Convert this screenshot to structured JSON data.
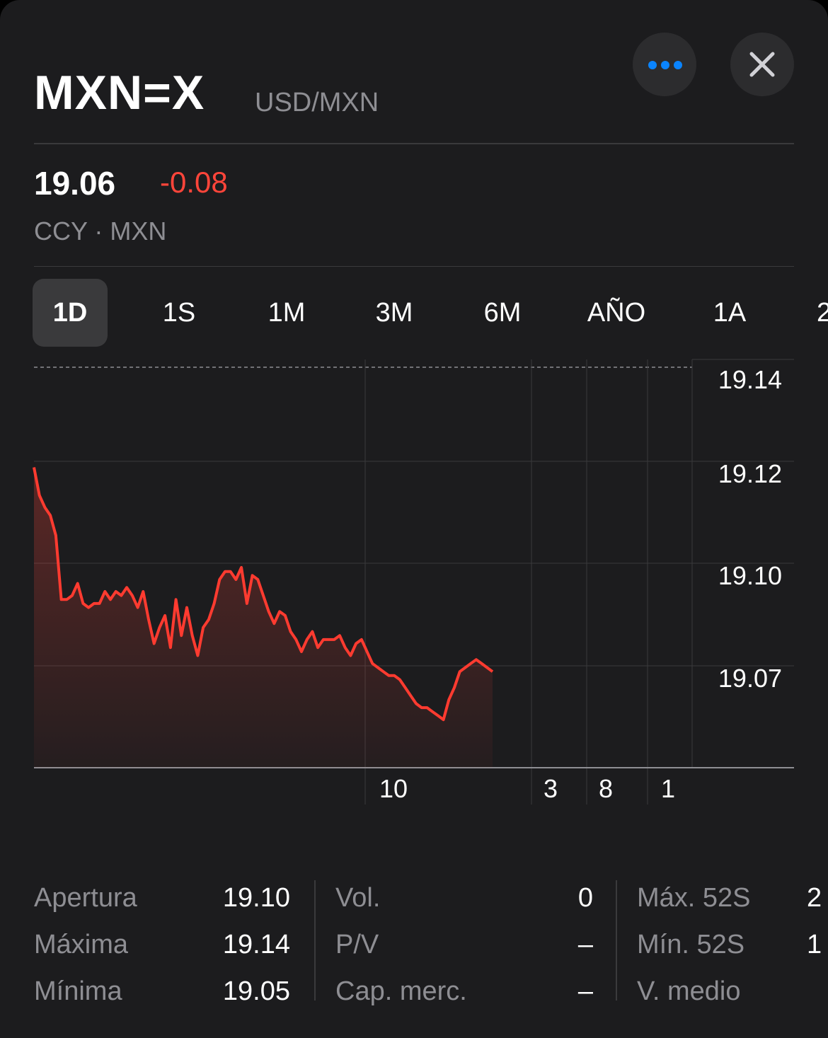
{
  "header": {
    "symbol": "MXN=X",
    "pair": "USD/MXN",
    "more_icon": "ellipsis-icon",
    "close_icon": "close-icon"
  },
  "quote": {
    "price": "19.06",
    "change": "-0.08",
    "meta": "CCY · MXN"
  },
  "tabs": [
    {
      "label": "1D",
      "active": true
    },
    {
      "label": "1S",
      "active": false
    },
    {
      "label": "1M",
      "active": false
    },
    {
      "label": "3M",
      "active": false
    },
    {
      "label": "6M",
      "active": false
    },
    {
      "label": "AÑO",
      "active": false
    },
    {
      "label": "1A",
      "active": false
    },
    {
      "label": "2",
      "active": false
    }
  ],
  "colors": {
    "background": "#1c1c1e",
    "negative": "#ff453a",
    "accent": "#0a84ff",
    "muted": "#8e8e93"
  },
  "chart_data": {
    "type": "line",
    "y_tick_labels": [
      "19.14",
      "19.12",
      "19.10",
      "19.07"
    ],
    "x_tick_labels": [
      "10",
      "3",
      "8",
      "1"
    ],
    "reference_line": 19.14,
    "ylim": [
      19.04,
      19.14
    ],
    "grid": true,
    "series": [
      {
        "values": [
          19.115,
          19.108,
          19.105,
          19.103,
          19.098,
          19.082,
          19.082,
          19.083,
          19.086,
          19.081,
          19.08,
          19.081,
          19.081,
          19.084,
          19.082,
          19.084,
          19.083,
          19.085,
          19.083,
          19.08,
          19.084,
          19.077,
          19.071,
          19.075,
          19.078,
          19.07,
          19.082,
          19.073,
          19.08,
          19.073,
          19.068,
          19.075,
          19.077,
          19.081,
          19.087,
          19.089,
          19.089,
          19.087,
          19.09,
          19.081,
          19.088,
          19.087,
          19.083,
          19.079,
          19.076,
          19.079,
          19.078,
          19.074,
          19.072,
          19.069,
          19.072,
          19.074,
          19.07,
          19.072,
          19.072,
          19.072,
          19.073,
          19.07,
          19.068,
          19.071,
          19.072,
          19.069,
          19.066,
          19.065,
          19.064,
          19.063,
          19.063,
          19.062,
          19.06,
          19.058,
          19.056,
          19.055,
          19.055,
          19.054,
          19.053,
          19.052,
          19.057,
          19.06,
          19.064,
          19.065,
          19.066,
          19.067,
          19.066,
          19.065,
          19.064
        ]
      }
    ]
  },
  "stats": {
    "col1": [
      {
        "label": "Apertura",
        "value": "19.10"
      },
      {
        "label": "Máxima",
        "value": "19.14"
      },
      {
        "label": "Mínima",
        "value": "19.05"
      }
    ],
    "col2": [
      {
        "label": "Vol.",
        "value": "0"
      },
      {
        "label": "P/V",
        "value": "–"
      },
      {
        "label": "Cap. merc.",
        "value": "–"
      }
    ],
    "col3": [
      {
        "label": "Máx. 52S",
        "value": "2"
      },
      {
        "label": "Mín. 52S",
        "value": "1"
      },
      {
        "label": "V. medio",
        "value": ""
      }
    ]
  }
}
